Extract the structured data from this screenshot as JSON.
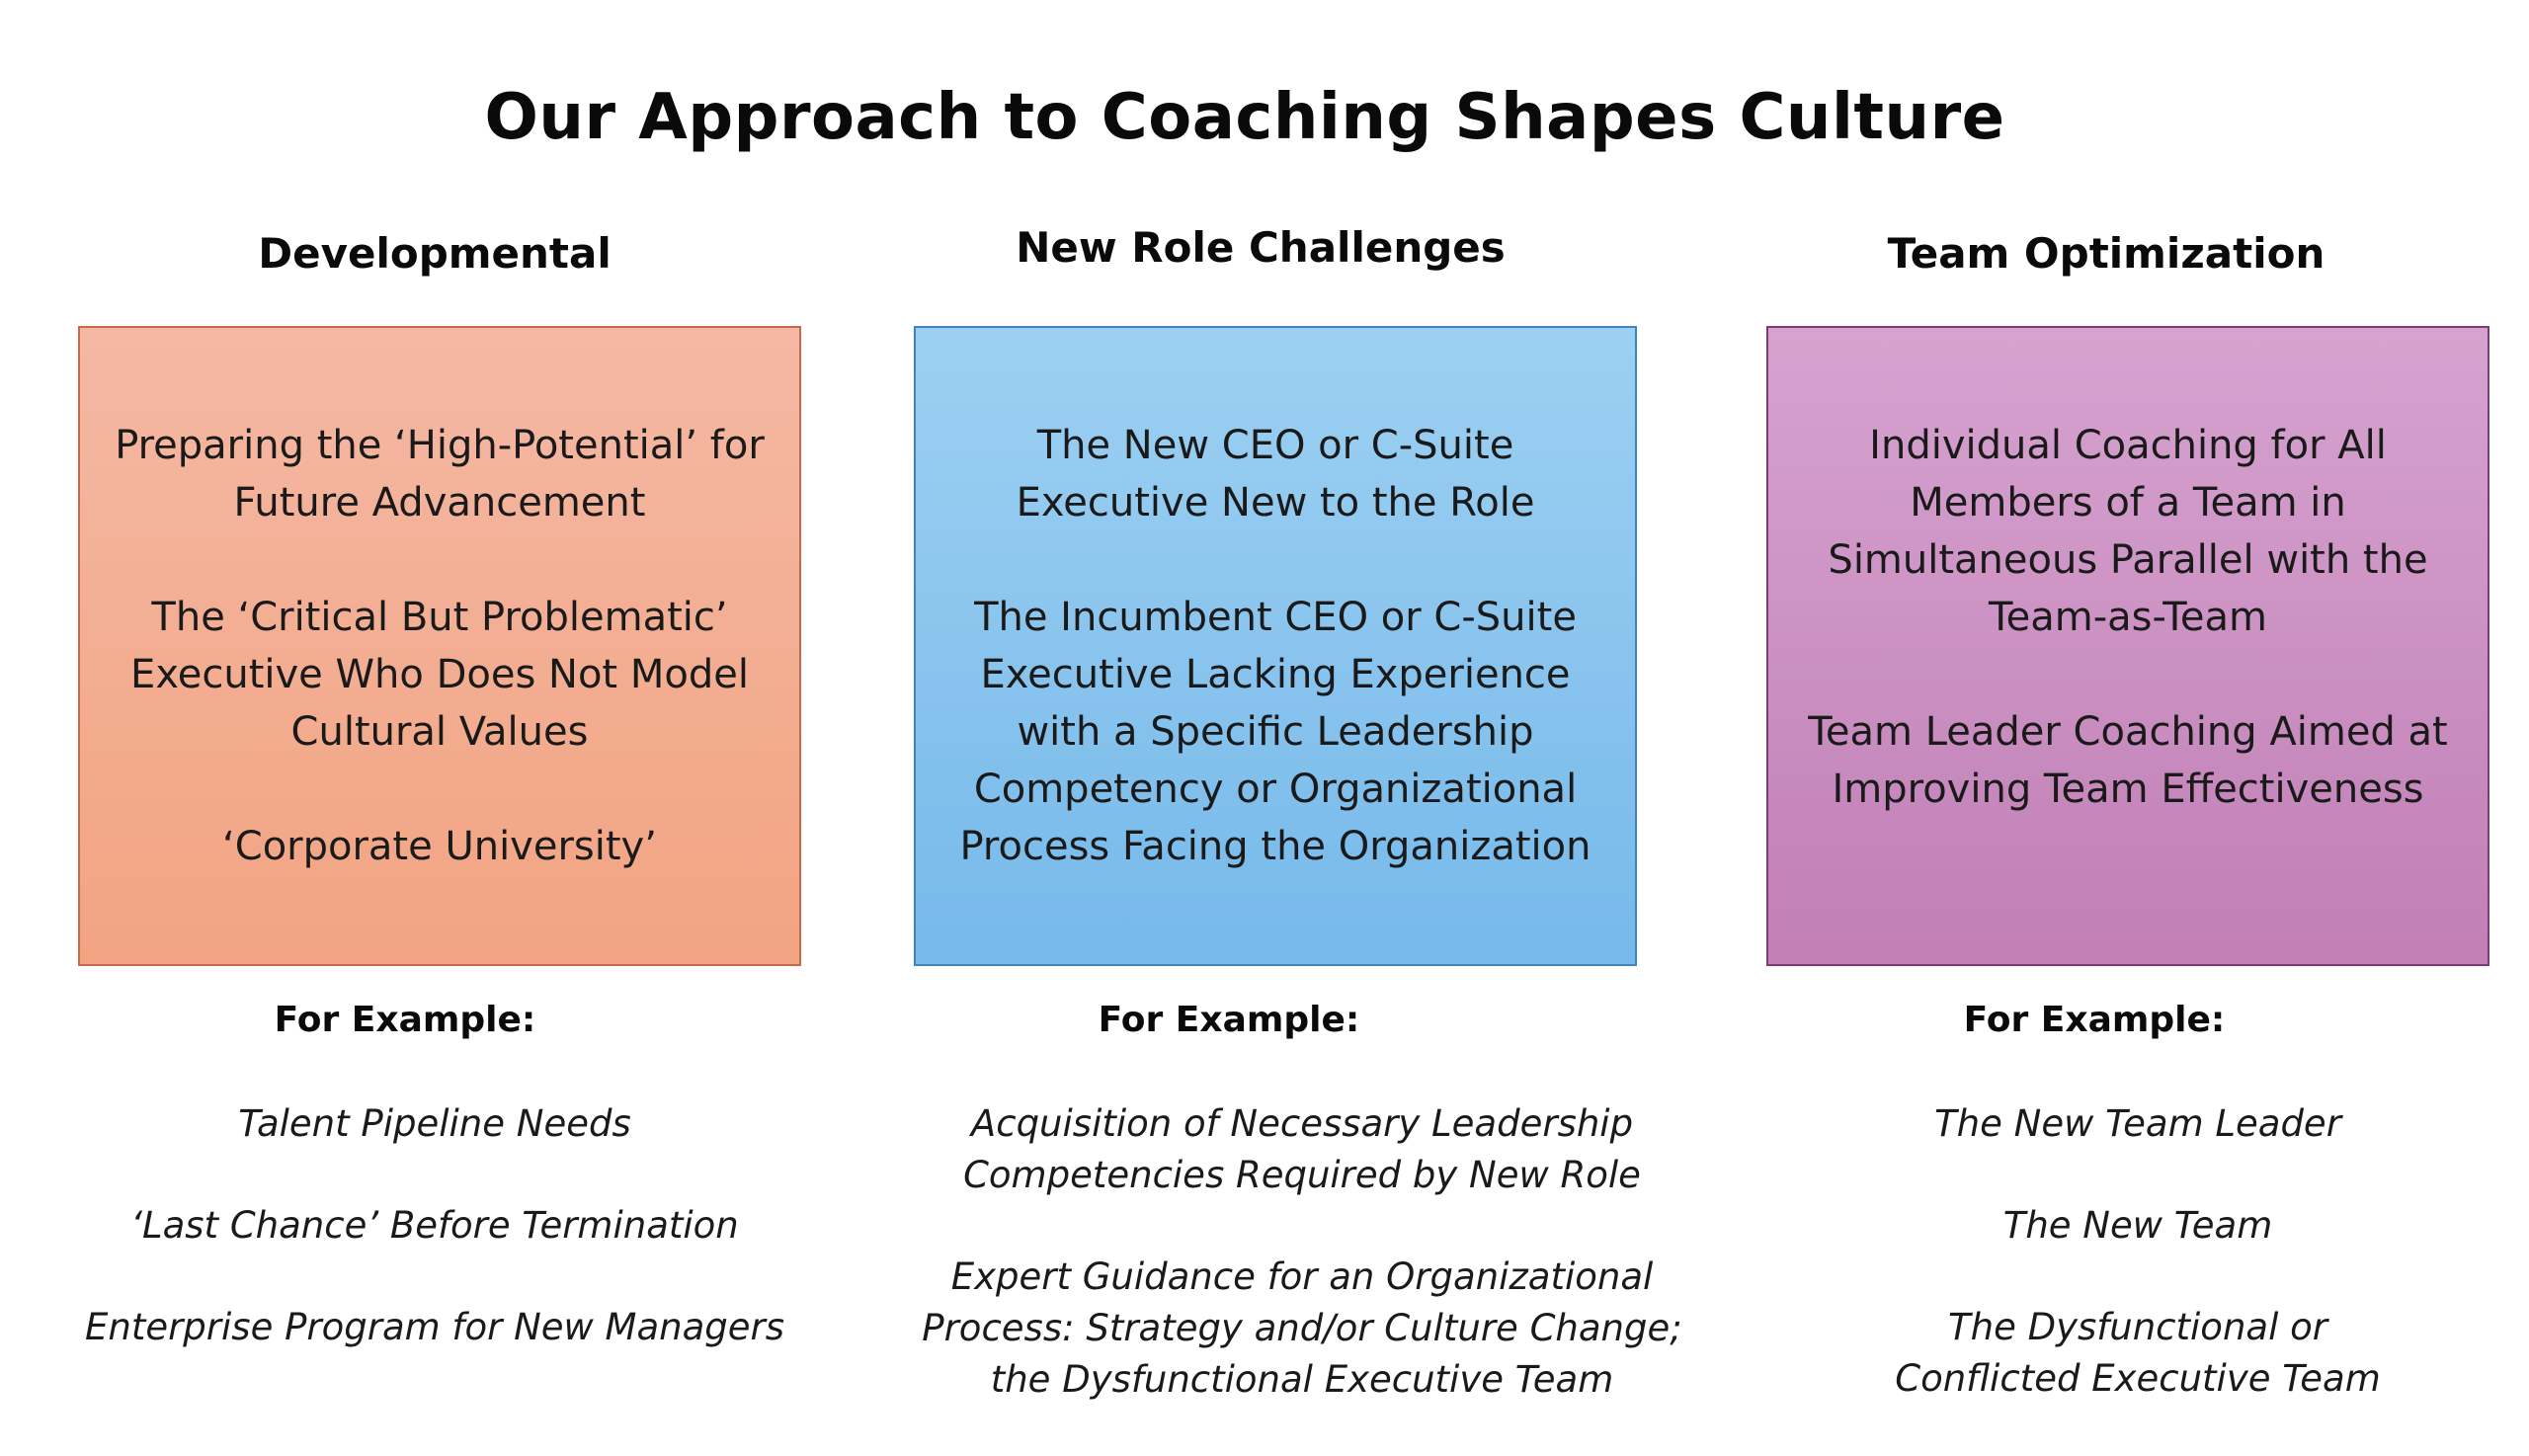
{
  "title": "Our Approach to Coaching Shapes Culture",
  "columns": [
    {
      "heading": "Developmental",
      "accent": "#f2a482",
      "items": [
        "Preparing the ‘High-Potential’ for Future Advancement",
        "The ‘Critical But Problematic’ Executive Who Does Not Model Cultural Values",
        "‘Corporate University’"
      ],
      "example_label": "For Example:",
      "examples": [
        "Talent Pipeline Needs",
        "‘Last Chance’ Before Termination",
        "Enterprise Program for New Managers"
      ]
    },
    {
      "heading": "New Role Challenges",
      "accent": "#76b9ea",
      "items": [
        "The New CEO or C-Suite Executive New to the Role",
        "The Incumbent CEO or C-Suite Executive Lacking Experience with a Specific Leadership Competency or Organizational Process Facing the Organization"
      ],
      "example_label": "For Example:",
      "examples": [
        "Acquisition of Necessary Leadership Competencies Required by New Role",
        "Expert Guidance for an Organizational Process: Strategy and/or Culture Change; the Dysfunctional Executive Team"
      ]
    },
    {
      "heading": "Team Optimization",
      "accent": "#c17fb6",
      "items": [
        "Individual Coaching for All Members of a Team in Simultaneous Parallel with the Team-as-Team",
        "Team Leader Coaching Aimed at Improving  Team Effectiveness"
      ],
      "example_label": "For Example:",
      "examples": [
        "The New Team Leader",
        "The New Team",
        "The Dysfunctional or Conflicted Executive Team"
      ]
    }
  ]
}
